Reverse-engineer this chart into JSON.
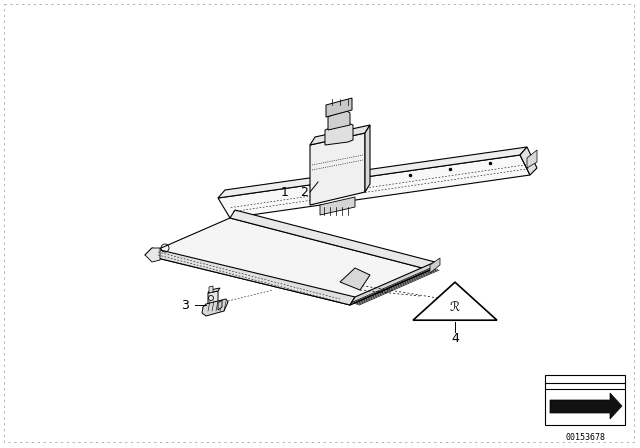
{
  "background_color": "#ffffff",
  "diagram_id": "00153678",
  "label_color": "#000000",
  "label_fontsize": 9,
  "line_color": "#000000",
  "thin_line": 0.6,
  "medium_line": 0.9,
  "dot_dash": [
    3,
    3
  ]
}
